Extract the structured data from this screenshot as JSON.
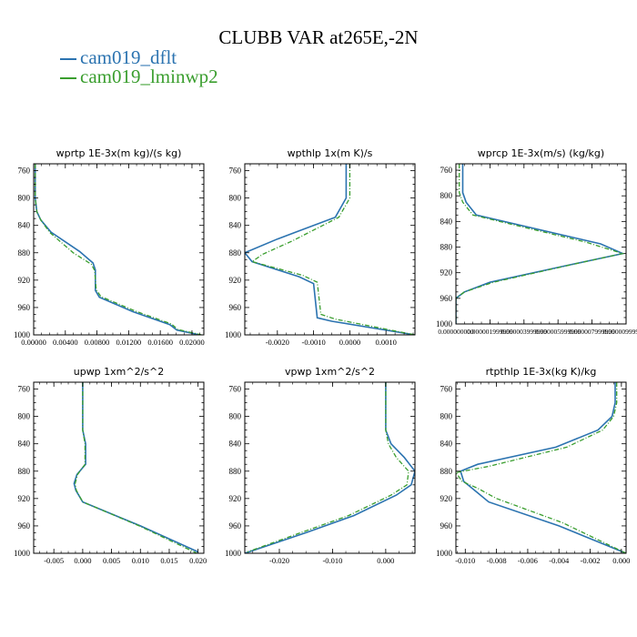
{
  "title": "CLUBB VAR at265E,-2N",
  "legend": [
    {
      "name": "cam019_dflt",
      "color": "#2b73b0"
    },
    {
      "name": "cam019_lminwp2",
      "color": "#3a9e2e"
    }
  ],
  "chart_data": [
    {
      "type": "line",
      "title": "wprtp  1E-3x(m kg)/(s kg)",
      "xlim": [
        0,
        0.0215
      ],
      "ylim": [
        1000,
        750
      ],
      "xticks": [
        "0.00000",
        "0.00400",
        "0.00800",
        "0.01200",
        "0.01600",
        "0.02000"
      ],
      "xtick_values": [
        0,
        0.004,
        0.008,
        0.012,
        0.016,
        0.02
      ],
      "yticks": [
        "760",
        "800",
        "840",
        "880",
        "920",
        "960",
        "1000"
      ],
      "ytick_values": [
        760,
        800,
        840,
        880,
        920,
        960,
        1000
      ],
      "series": [
        {
          "name": "cam019_dflt",
          "x": [
            0.0002,
            0.0002,
            0.0004,
            0.0009,
            0.0022,
            0.0058,
            0.0075,
            0.0078,
            0.0078,
            0.0083,
            0.0125,
            0.0172,
            0.0181,
            0.021
          ],
          "y": [
            750,
            800,
            820,
            832,
            850,
            878,
            895,
            905,
            935,
            945,
            966,
            985,
            993,
            1000
          ]
        },
        {
          "name": "cam019_lminwp2",
          "x": [
            0.0002,
            0.0002,
            0.0004,
            0.0009,
            0.002,
            0.005,
            0.0073,
            0.0077,
            0.0079,
            0.0085,
            0.0128,
            0.0174,
            0.0182,
            0.0212
          ],
          "y": [
            750,
            800,
            820,
            832,
            850,
            880,
            897,
            906,
            934,
            944,
            965,
            984,
            992,
            1000
          ]
        }
      ]
    },
    {
      "type": "line",
      "title": "wpthlp  1x(m K)/s",
      "xlim": [
        -0.0029,
        0.0018
      ],
      "ylim": [
        1000,
        750
      ],
      "xticks": [
        "-0.0020",
        "-0.0010",
        "0.0000",
        "0.0010"
      ],
      "xtick_values": [
        -0.002,
        -0.001,
        0,
        0.001
      ],
      "yticks": [
        "760",
        "800",
        "840",
        "880",
        "920",
        "960",
        "1000"
      ],
      "ytick_values": [
        760,
        800,
        840,
        880,
        920,
        960,
        1000
      ],
      "series": [
        {
          "name": "cam019_dflt",
          "x": [
            -0.0001,
            -0.0001,
            -0.0004,
            -0.002,
            -0.0029,
            -0.0027,
            -0.0014,
            -0.001,
            -0.0009,
            -0.0005,
            0.0018
          ],
          "y": [
            750,
            800,
            828,
            860,
            880,
            893,
            915,
            925,
            975,
            980,
            1000
          ]
        },
        {
          "name": "cam019_lminwp2",
          "x": [
            0.0,
            0.0,
            -0.0003,
            -0.0016,
            -0.0024,
            -0.0027,
            -0.0013,
            -0.0009,
            -0.0008,
            -0.0004,
            0.0018
          ],
          "y": [
            750,
            800,
            828,
            863,
            882,
            893,
            913,
            923,
            970,
            977,
            1000
          ]
        }
      ]
    },
    {
      "type": "line",
      "title": "wprcp  1E-3x(m/s) (kg/kg)",
      "xlim": [
        0,
        1e-05
      ],
      "ylim": [
        1000,
        750
      ],
      "xticks": [
        "0.000000000",
        "0.000001999999",
        "0.000003999999",
        "0.000005999999",
        "0.000007999999",
        "0.000009999999"
      ],
      "xtick_values": [
        0,
        2e-06,
        4e-06,
        6e-06,
        8e-06,
        1e-05
      ],
      "yticks": [
        "760",
        "800",
        "840",
        "880",
        "920",
        "960",
        "1000"
      ],
      "ytick_values": [
        760,
        800,
        840,
        880,
        920,
        960,
        1000
      ],
      "series": [
        {
          "name": "cam019_dflt",
          "x": [
            4e-07,
            4e-07,
            6e-07,
            1.2e-06,
            8.5e-06,
            9.8e-06,
            6.3e-06,
            2e-06,
            5e-07,
            0.0,
            0.0
          ],
          "y": [
            750,
            795,
            810,
            830,
            875,
            890,
            910,
            935,
            950,
            960,
            1000
          ]
        },
        {
          "name": "cam019_lminwp2",
          "x": [
            2e-07,
            2e-07,
            4e-07,
            1e-06,
            7.6e-06,
            9.8e-06,
            6.7e-06,
            2.2e-06,
            5e-07,
            0.0,
            0.0
          ],
          "y": [
            750,
            795,
            810,
            830,
            872,
            890,
            908,
            935,
            950,
            960,
            1000
          ]
        }
      ]
    },
    {
      "type": "line",
      "title": "upwp  1xm^2/s^2",
      "xlim": [
        -0.0085,
        0.021
      ],
      "ylim": [
        1000,
        750
      ],
      "xticks": [
        "-0.005",
        "0.000",
        "0.005",
        "0.010",
        "0.015",
        "0.020"
      ],
      "xtick_values": [
        -0.005,
        0,
        0.005,
        0.01,
        0.015,
        0.02
      ],
      "yticks": [
        "760",
        "800",
        "840",
        "880",
        "920",
        "960",
        "1000"
      ],
      "ytick_values": [
        760,
        800,
        840,
        880,
        920,
        960,
        1000
      ],
      "series": [
        {
          "name": "cam019_dflt",
          "x": [
            0.0,
            0.0,
            0.0005,
            0.0005,
            -0.001,
            -0.0015,
            -0.0012,
            0.0,
            0.01,
            0.02
          ],
          "y": [
            750,
            820,
            840,
            870,
            885,
            898,
            908,
            925,
            960,
            998
          ]
        },
        {
          "name": "cam019_lminwp2",
          "x": [
            0.0,
            0.0,
            0.0004,
            0.0004,
            -0.0009,
            -0.0013,
            -0.0011,
            0.0,
            0.0098,
            0.0198
          ],
          "y": [
            750,
            820,
            840,
            870,
            885,
            898,
            908,
            925,
            960,
            1000
          ]
        }
      ]
    },
    {
      "type": "line",
      "title": "vpwp  1xm^2/s^2",
      "xlim": [
        -0.0265,
        0.0055
      ],
      "ylim": [
        1000,
        750
      ],
      "xticks": [
        "-0.020",
        "-0.010",
        "0.000"
      ],
      "xtick_values": [
        -0.02,
        -0.01,
        0
      ],
      "yticks": [
        "760",
        "800",
        "840",
        "880",
        "920",
        "960",
        "1000"
      ],
      "ytick_values": [
        760,
        800,
        840,
        880,
        920,
        960,
        1000
      ],
      "series": [
        {
          "name": "cam019_dflt",
          "x": [
            0.0,
            0.0,
            0.001,
            0.0035,
            0.0055,
            0.0048,
            0.002,
            -0.006,
            -0.015,
            -0.0265
          ],
          "y": [
            750,
            820,
            840,
            860,
            880,
            900,
            915,
            945,
            970,
            1000
          ]
        },
        {
          "name": "cam019_lminwp2",
          "x": [
            0.0,
            0.0,
            0.0005,
            0.002,
            0.0043,
            0.004,
            0.001,
            -0.007,
            -0.016,
            -0.026
          ],
          "y": [
            750,
            820,
            840,
            860,
            880,
            900,
            915,
            945,
            970,
            998
          ]
        }
      ]
    },
    {
      "type": "line",
      "title": "rtpthlp  1E-3x(kg K)/kg",
      "xlim": [
        -0.0106,
        0.0003
      ],
      "ylim": [
        1000,
        750
      ],
      "xticks": [
        "-0.010",
        "-0.008",
        "-0.006",
        "-0.004",
        "-0.002",
        "0.000"
      ],
      "xtick_values": [
        -0.01,
        -0.008,
        -0.006,
        -0.004,
        -0.002,
        0
      ],
      "yticks": [
        "760",
        "800",
        "840",
        "880",
        "920",
        "960",
        "1000"
      ],
      "ytick_values": [
        760,
        800,
        840,
        880,
        920,
        960,
        1000
      ],
      "series": [
        {
          "name": "cam019_dflt",
          "x": [
            -0.0004,
            -0.0004,
            -0.0006,
            -0.0015,
            -0.0042,
            -0.0092,
            -0.0103,
            -0.0101,
            -0.0093,
            -0.0085,
            -0.004,
            0.0003
          ],
          "y": [
            750,
            780,
            800,
            820,
            845,
            870,
            880,
            895,
            910,
            925,
            960,
            1000
          ]
        },
        {
          "name": "cam019_lminwp2",
          "x": [
            -0.0003,
            -0.0003,
            -0.0005,
            -0.0012,
            -0.0035,
            -0.0085,
            -0.0106,
            -0.0102,
            -0.0092,
            -0.008,
            -0.0038,
            0.0003
          ],
          "y": [
            750,
            780,
            800,
            820,
            845,
            873,
            882,
            895,
            905,
            920,
            955,
            1000
          ]
        }
      ]
    }
  ]
}
